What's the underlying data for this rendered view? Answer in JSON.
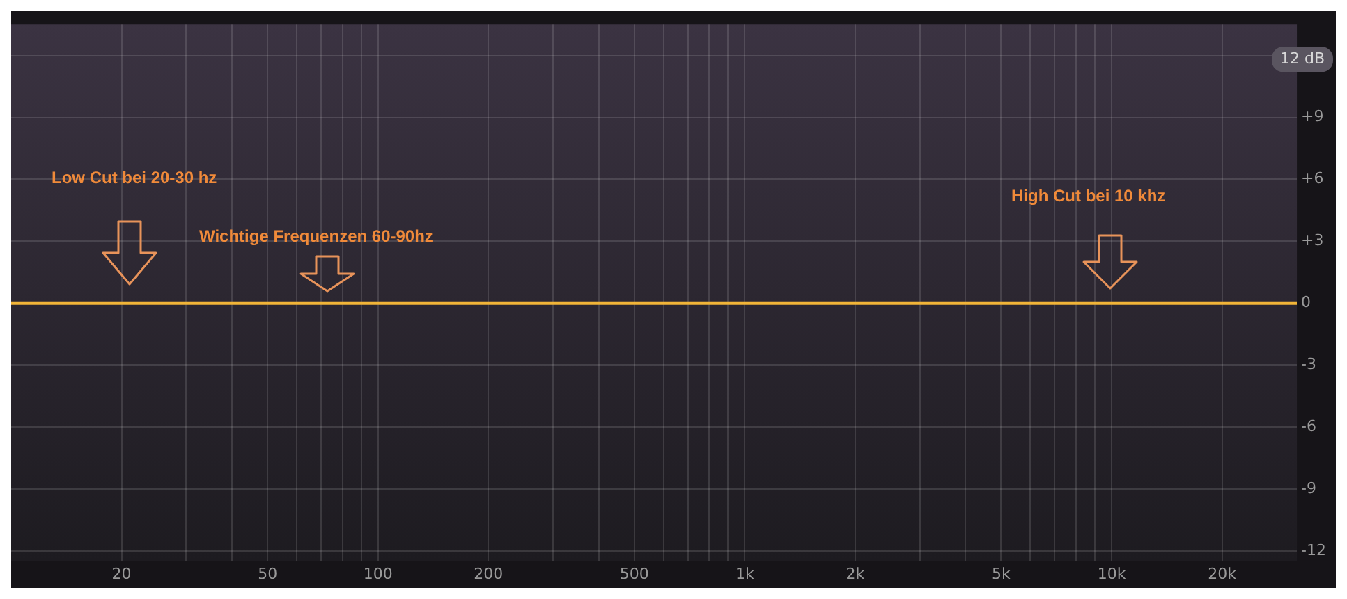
{
  "chart_data": {
    "type": "line",
    "x": [
      10,
      32000
    ],
    "series": [
      {
        "color": "#f2b538",
        "values": [
          0,
          0
        ]
      }
    ],
    "xlim": [
      10,
      32000
    ],
    "xticks": [
      {
        "value": 20,
        "label": "20"
      },
      {
        "value": 30,
        "label": null
      },
      {
        "value": 40,
        "label": null
      },
      {
        "value": 50,
        "label": "50"
      },
      {
        "value": 60,
        "label": null
      },
      {
        "value": 70,
        "label": null
      },
      {
        "value": 80,
        "label": null
      },
      {
        "value": 90,
        "label": null
      },
      {
        "value": 100,
        "label": "100"
      },
      {
        "value": 200,
        "label": "200"
      },
      {
        "value": 300,
        "label": null
      },
      {
        "value": 400,
        "label": null
      },
      {
        "value": 500,
        "label": "500"
      },
      {
        "value": 600,
        "label": null
      },
      {
        "value": 700,
        "label": null
      },
      {
        "value": 800,
        "label": null
      },
      {
        "value": 900,
        "label": null
      },
      {
        "value": 1000,
        "label": "1k"
      },
      {
        "value": 2000,
        "label": "2k"
      },
      {
        "value": 3000,
        "label": null
      },
      {
        "value": 4000,
        "label": null
      },
      {
        "value": 5000,
        "label": "5k"
      },
      {
        "value": 6000,
        "label": null
      },
      {
        "value": 7000,
        "label": null
      },
      {
        "value": 8000,
        "label": null
      },
      {
        "value": 9000,
        "label": null
      },
      {
        "value": 10000,
        "label": "10k"
      },
      {
        "value": 20000,
        "label": "20k"
      }
    ],
    "ylim": [
      -12.5,
      13.5
    ],
    "yticks": [
      {
        "value": 12,
        "label": null
      },
      {
        "value": 9,
        "label": "+9"
      },
      {
        "value": 6,
        "label": "+6"
      },
      {
        "value": 3,
        "label": "+3"
      },
      0,
      -3,
      -6,
      -9,
      -12
    ],
    "log": "x",
    "grid": true,
    "legend": false,
    "marker": "none",
    "annotations": [
      "12 dB",
      "Low Cut bei 20-30 hz",
      "Wichtige Frequenzen 60-90hz",
      "High Cut bei 10 khz"
    ]
  }
}
